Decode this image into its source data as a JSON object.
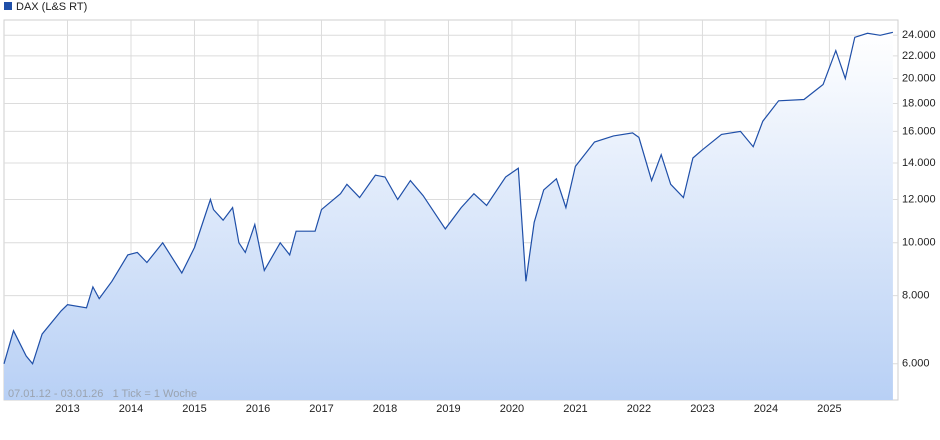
{
  "chart_data": {
    "type": "line",
    "legend": "DAX (L&S RT)",
    "footer": "07.01.12 - 03.01.26   1 Tick = 1 Woche",
    "log_scale": true,
    "grid": true,
    "color": "#1f4fa8",
    "x": [
      2012.0,
      2012.15,
      2012.35,
      2012.45,
      2012.6,
      2012.9,
      2013.0,
      2013.3,
      2013.4,
      2013.5,
      2013.7,
      2013.95,
      2014.1,
      2014.25,
      2014.5,
      2014.8,
      2015.0,
      2015.25,
      2015.3,
      2015.45,
      2015.6,
      2015.7,
      2015.8,
      2015.95,
      2016.1,
      2016.35,
      2016.5,
      2016.6,
      2016.9,
      2017.0,
      2017.3,
      2017.4,
      2017.6,
      2017.85,
      2018.0,
      2018.2,
      2018.4,
      2018.6,
      2018.95,
      2019.2,
      2019.4,
      2019.6,
      2019.9,
      2020.1,
      2020.22,
      2020.35,
      2020.5,
      2020.7,
      2020.85,
      2021.0,
      2021.3,
      2021.6,
      2021.9,
      2022.0,
      2022.2,
      2022.35,
      2022.5,
      2022.7,
      2022.85,
      2023.0,
      2023.3,
      2023.6,
      2023.8,
      2023.95,
      2024.2,
      2024.6,
      2024.9,
      2025.1,
      2025.25,
      2025.4,
      2025.6,
      2025.8,
      2026.0
    ],
    "values": [
      6000,
      6900,
      6200,
      6000,
      6800,
      7500,
      7700,
      7600,
      8300,
      7900,
      8500,
      9500,
      9600,
      9200,
      10000,
      8800,
      9800,
      12000,
      11500,
      11000,
      11600,
      10000,
      9600,
      10800,
      8900,
      10000,
      9500,
      10500,
      10500,
      11500,
      12300,
      12800,
      12100,
      13300,
      13200,
      12000,
      13000,
      12200,
      10600,
      11600,
      12300,
      11700,
      13200,
      13700,
      8500,
      10900,
      12500,
      13100,
      11600,
      13800,
      15300,
      15700,
      15900,
      15600,
      13000,
      14500,
      12800,
      12100,
      14300,
      14800,
      15800,
      16000,
      15000,
      16700,
      18200,
      18300,
      19500,
      22500,
      20000,
      23800,
      24200,
      24000,
      24300
    ],
    "xlim": [
      2012.0,
      2026.08
    ],
    "xticks": [
      2013,
      2014,
      2015,
      2016,
      2017,
      2018,
      2019,
      2020,
      2021,
      2022,
      2023,
      2024,
      2025
    ],
    "ylim": [
      5150,
      25600
    ],
    "yticks": [
      {
        "value": 6000,
        "label": "6.000"
      },
      {
        "value": 8000,
        "label": "8.000"
      },
      {
        "value": 10000,
        "label": "10.000"
      },
      {
        "value": 12000,
        "label": "12.000"
      },
      {
        "value": 14000,
        "label": "14.000"
      },
      {
        "value": 16000,
        "label": "16.000"
      },
      {
        "value": 18000,
        "label": "18.000"
      },
      {
        "value": 20000,
        "label": "20.000"
      },
      {
        "value": 22000,
        "label": "22.000"
      },
      {
        "value": 24000,
        "label": "24.000"
      }
    ]
  }
}
